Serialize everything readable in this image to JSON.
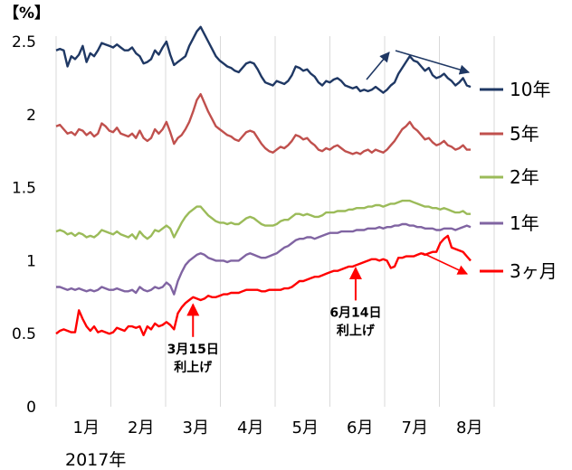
{
  "chart_data": {
    "type": "line",
    "unit_label": "【%】",
    "year_label": "2017年",
    "ylim": [
      0,
      2.5
    ],
    "yticks": [
      "0",
      "0.5",
      "1",
      "1.5",
      "2",
      "2.5"
    ],
    "months": [
      "1月",
      "2月",
      "3月",
      "4月",
      "5月",
      "6月",
      "7月",
      "8月"
    ],
    "grid": "vertical-month-lines",
    "legend_position": "right",
    "series": [
      {
        "name": "10年",
        "color": "#1f3864",
        "values": [
          2.44,
          2.45,
          2.44,
          2.33,
          2.4,
          2.38,
          2.41,
          2.47,
          2.36,
          2.42,
          2.4,
          2.44,
          2.49,
          2.48,
          2.47,
          2.46,
          2.48,
          2.46,
          2.44,
          2.44,
          2.46,
          2.42,
          2.4,
          2.35,
          2.36,
          2.38,
          2.44,
          2.41,
          2.46,
          2.5,
          2.41,
          2.34,
          2.36,
          2.38,
          2.4,
          2.47,
          2.52,
          2.57,
          2.6,
          2.55,
          2.5,
          2.45,
          2.4,
          2.37,
          2.35,
          2.33,
          2.32,
          2.3,
          2.29,
          2.32,
          2.35,
          2.36,
          2.35,
          2.31,
          2.26,
          2.22,
          2.21,
          2.2,
          2.23,
          2.22,
          2.21,
          2.23,
          2.27,
          2.33,
          2.32,
          2.3,
          2.31,
          2.28,
          2.26,
          2.22,
          2.2,
          2.23,
          2.22,
          2.24,
          2.25,
          2.23,
          2.2,
          2.19,
          2.18,
          2.19,
          2.16,
          2.17,
          2.16,
          2.17,
          2.19,
          2.17,
          2.15,
          2.17,
          2.2,
          2.22,
          2.28,
          2.32,
          2.36,
          2.4,
          2.37,
          2.36,
          2.33,
          2.3,
          2.32,
          2.27,
          2.25,
          2.26,
          2.28,
          2.25,
          2.23,
          2.2,
          2.22,
          2.25,
          2.2,
          2.19
        ]
      },
      {
        "name": "5年",
        "color": "#c0504d",
        "values": [
          1.92,
          1.93,
          1.9,
          1.87,
          1.88,
          1.86,
          1.9,
          1.89,
          1.86,
          1.88,
          1.85,
          1.87,
          1.94,
          1.92,
          1.89,
          1.88,
          1.91,
          1.87,
          1.86,
          1.85,
          1.87,
          1.84,
          1.89,
          1.84,
          1.82,
          1.84,
          1.9,
          1.87,
          1.9,
          1.95,
          1.88,
          1.8,
          1.84,
          1.86,
          1.9,
          1.95,
          2.02,
          2.1,
          2.14,
          2.08,
          2.02,
          1.97,
          1.92,
          1.9,
          1.88,
          1.86,
          1.85,
          1.83,
          1.82,
          1.85,
          1.88,
          1.89,
          1.88,
          1.84,
          1.8,
          1.77,
          1.75,
          1.74,
          1.76,
          1.78,
          1.77,
          1.79,
          1.82,
          1.86,
          1.85,
          1.83,
          1.84,
          1.81,
          1.79,
          1.76,
          1.75,
          1.77,
          1.76,
          1.78,
          1.79,
          1.77,
          1.75,
          1.74,
          1.73,
          1.74,
          1.73,
          1.75,
          1.76,
          1.74,
          1.76,
          1.75,
          1.74,
          1.76,
          1.79,
          1.82,
          1.86,
          1.9,
          1.92,
          1.95,
          1.91,
          1.89,
          1.86,
          1.83,
          1.84,
          1.81,
          1.79,
          1.8,
          1.82,
          1.79,
          1.78,
          1.76,
          1.77,
          1.79,
          1.76,
          1.76
        ]
      },
      {
        "name": "2年",
        "color": "#9bbb59",
        "values": [
          1.2,
          1.21,
          1.2,
          1.18,
          1.19,
          1.17,
          1.19,
          1.18,
          1.16,
          1.17,
          1.16,
          1.18,
          1.21,
          1.2,
          1.19,
          1.18,
          1.2,
          1.18,
          1.17,
          1.16,
          1.18,
          1.15,
          1.2,
          1.17,
          1.15,
          1.17,
          1.21,
          1.2,
          1.22,
          1.24,
          1.22,
          1.16,
          1.21,
          1.26,
          1.3,
          1.33,
          1.35,
          1.37,
          1.37,
          1.34,
          1.31,
          1.29,
          1.27,
          1.26,
          1.26,
          1.25,
          1.26,
          1.25,
          1.25,
          1.27,
          1.29,
          1.3,
          1.29,
          1.27,
          1.25,
          1.24,
          1.24,
          1.24,
          1.25,
          1.27,
          1.28,
          1.28,
          1.3,
          1.32,
          1.32,
          1.31,
          1.32,
          1.31,
          1.3,
          1.3,
          1.31,
          1.33,
          1.33,
          1.33,
          1.34,
          1.34,
          1.34,
          1.35,
          1.35,
          1.36,
          1.36,
          1.36,
          1.37,
          1.37,
          1.38,
          1.38,
          1.37,
          1.38,
          1.39,
          1.39,
          1.4,
          1.41,
          1.41,
          1.41,
          1.4,
          1.39,
          1.38,
          1.37,
          1.37,
          1.36,
          1.36,
          1.35,
          1.36,
          1.35,
          1.34,
          1.33,
          1.33,
          1.34,
          1.32,
          1.32
        ]
      },
      {
        "name": "1年",
        "color": "#8064a2",
        "values": [
          0.82,
          0.82,
          0.81,
          0.8,
          0.81,
          0.8,
          0.81,
          0.8,
          0.79,
          0.8,
          0.79,
          0.8,
          0.82,
          0.81,
          0.8,
          0.8,
          0.81,
          0.8,
          0.79,
          0.79,
          0.8,
          0.78,
          0.82,
          0.8,
          0.79,
          0.8,
          0.82,
          0.81,
          0.82,
          0.85,
          0.83,
          0.77,
          0.86,
          0.92,
          0.97,
          1.0,
          1.02,
          1.04,
          1.05,
          1.04,
          1.02,
          1.01,
          1.0,
          1.0,
          1.0,
          0.99,
          1.0,
          1.0,
          1.0,
          1.02,
          1.04,
          1.05,
          1.04,
          1.03,
          1.02,
          1.02,
          1.03,
          1.04,
          1.05,
          1.07,
          1.09,
          1.1,
          1.12,
          1.14,
          1.15,
          1.15,
          1.16,
          1.16,
          1.15,
          1.16,
          1.17,
          1.18,
          1.19,
          1.19,
          1.19,
          1.2,
          1.2,
          1.2,
          1.2,
          1.21,
          1.21,
          1.21,
          1.22,
          1.22,
          1.22,
          1.23,
          1.22,
          1.23,
          1.23,
          1.24,
          1.24,
          1.25,
          1.25,
          1.24,
          1.24,
          1.23,
          1.23,
          1.22,
          1.22,
          1.22,
          1.21,
          1.21,
          1.22,
          1.22,
          1.22,
          1.21,
          1.22,
          1.23,
          1.24,
          1.23
        ]
      },
      {
        "name": "3ヶ月",
        "color": "#ff0000",
        "values": [
          0.5,
          0.52,
          0.53,
          0.52,
          0.51,
          0.51,
          0.66,
          0.6,
          0.55,
          0.52,
          0.55,
          0.51,
          0.52,
          0.51,
          0.5,
          0.51,
          0.54,
          0.53,
          0.52,
          0.55,
          0.55,
          0.54,
          0.55,
          0.49,
          0.55,
          0.53,
          0.57,
          0.55,
          0.56,
          0.58,
          0.56,
          0.53,
          0.64,
          0.68,
          0.71,
          0.73,
          0.75,
          0.74,
          0.73,
          0.74,
          0.76,
          0.75,
          0.75,
          0.76,
          0.77,
          0.77,
          0.78,
          0.78,
          0.78,
          0.79,
          0.8,
          0.8,
          0.8,
          0.8,
          0.79,
          0.79,
          0.8,
          0.8,
          0.8,
          0.8,
          0.81,
          0.81,
          0.82,
          0.84,
          0.86,
          0.86,
          0.87,
          0.88,
          0.89,
          0.89,
          0.9,
          0.91,
          0.92,
          0.93,
          0.93,
          0.94,
          0.95,
          0.96,
          0.96,
          0.97,
          0.98,
          0.99,
          1.0,
          1.01,
          1.01,
          1.0,
          1.01,
          1.0,
          0.95,
          0.96,
          1.02,
          1.02,
          1.03,
          1.03,
          1.03,
          1.04,
          1.05,
          1.04,
          1.05,
          1.06,
          1.06,
          1.12,
          1.15,
          1.17,
          1.09,
          1.08,
          1.07,
          1.06,
          1.03,
          1.0
        ]
      }
    ],
    "annotations": [
      {
        "date": "3月15日",
        "text": "利上げ",
        "month_pos": 2.5,
        "at_value": 0.75
      },
      {
        "date": "6月14日",
        "text": "利上げ",
        "month_pos": 5.47,
        "at_value": 1.0
      }
    ]
  }
}
